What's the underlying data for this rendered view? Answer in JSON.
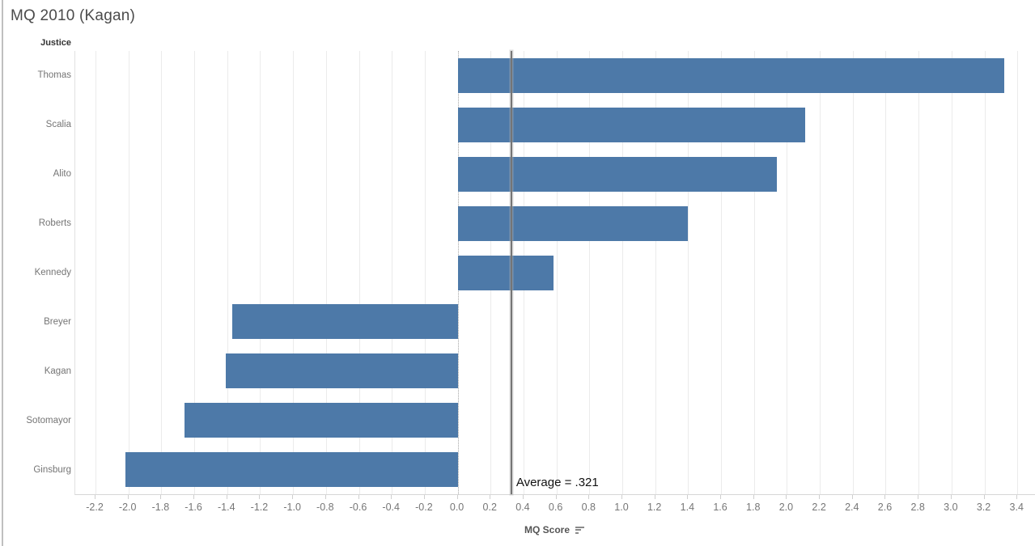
{
  "title": "MQ 2010 (Kagan)",
  "row_header": "Justice",
  "axis": {
    "label": "MQ Score",
    "sort_icon": "sort-descending-icon"
  },
  "reference_line": {
    "value": 0.321,
    "label": "Average = .321"
  },
  "colors": {
    "bar": "#4d79a8",
    "gridline": "#ebebeb",
    "zero_line": "#b5b5b5",
    "reference_line": "#757575",
    "axis_line": "#d6d6d6",
    "window_border": "#bfbfbf"
  },
  "chart_data": {
    "type": "bar",
    "orientation": "horizontal",
    "title": "MQ 2010 (Kagan)",
    "xlabel": "MQ Score",
    "ylabel": "Justice",
    "categories": [
      "Thomas",
      "Scalia",
      "Alito",
      "Roberts",
      "Kennedy",
      "Breyer",
      "Kagan",
      "Sotomayor",
      "Ginsburg"
    ],
    "values": [
      3.32,
      2.11,
      1.94,
      1.4,
      0.58,
      -1.37,
      -1.41,
      -1.66,
      -2.02
    ],
    "xlim": [
      -2.323,
      3.507
    ],
    "xticks": [
      -2.2,
      -2.0,
      -1.8,
      -1.6,
      -1.4,
      -1.2,
      -1.0,
      -0.8,
      -0.6,
      -0.4,
      -0.2,
      0.0,
      0.2,
      0.4,
      0.6,
      0.8,
      1.0,
      1.2,
      1.4,
      1.6,
      1.8,
      2.0,
      2.2,
      2.4,
      2.6,
      2.8,
      3.0,
      3.2,
      3.4
    ],
    "grid": true,
    "zero_line": 0,
    "legend": false,
    "reference_line": {
      "value": 0.321,
      "label": "Average = .321"
    }
  }
}
